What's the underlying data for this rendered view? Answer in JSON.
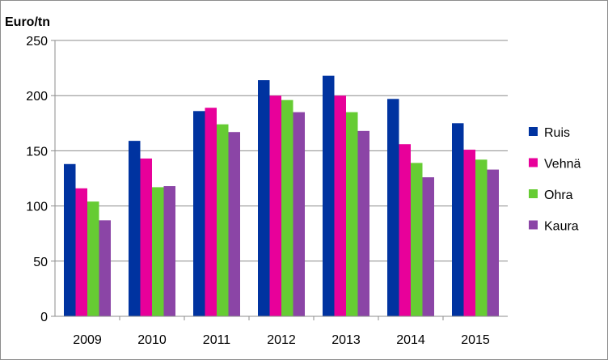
{
  "chart_data": {
    "type": "bar",
    "title": "",
    "ylabel": "Euro/tn",
    "xlabel": "",
    "ylim": [
      0,
      250
    ],
    "yticks": [
      0,
      50,
      100,
      150,
      200,
      250
    ],
    "grid": true,
    "legend_position": "right",
    "categories": [
      "2009",
      "2010",
      "2011",
      "2012",
      "2013",
      "2014",
      "2015"
    ],
    "series": [
      {
        "name": "Ruis",
        "color": "#0033a0",
        "values": [
          138,
          159,
          186,
          214,
          218,
          197,
          175
        ]
      },
      {
        "name": "Vehnä",
        "color": "#e8009a",
        "values": [
          116,
          143,
          189,
          200,
          200,
          156,
          151
        ]
      },
      {
        "name": "Ohra",
        "color": "#66cc33",
        "values": [
          104,
          117,
          174,
          196,
          185,
          139,
          142
        ]
      },
      {
        "name": "Kaura",
        "color": "#8b45a6",
        "values": [
          87,
          118,
          167,
          185,
          168,
          126,
          133
        ]
      }
    ]
  }
}
